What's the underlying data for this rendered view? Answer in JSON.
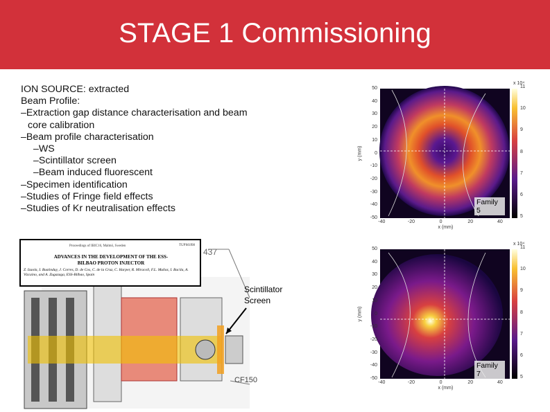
{
  "header": {
    "title": "STAGE 1 Commissioning"
  },
  "bullets": [
    "ION SOURCE: extracted",
    "Beam Profile:",
    "–Extraction gap distance characterisation  and beam",
    "core calibration",
    "–Beam profile characterisation",
    "–WS",
    "–Scintillator screen",
    "–Beam induced fluorescent",
    "–Specimen identification",
    "–Studies of Fringe field effects",
    "–Studies of Kr neutralisation effects"
  ],
  "plot_axes": {
    "y_label": "y (mm)",
    "x_label": "x (mm)",
    "y_ticks": [
      50,
      40,
      30,
      20,
      10,
      0,
      -10,
      -20,
      -30,
      -40,
      -50
    ],
    "x_ticks": [
      -40,
      -20,
      0,
      20,
      40
    ],
    "colorbar_ticks": [
      11,
      10,
      9,
      8,
      7,
      6,
      5
    ],
    "colorbar_scale": "x 10⁴"
  },
  "plots": [
    {
      "label": "Family 5"
    },
    {
      "label": "Family 7"
    }
  ],
  "annotation": "Scintillator Screen",
  "paper": {
    "header_left": "Proceedings of IBIC16, Malmö, Sweden",
    "header_right": "TUPM1f08",
    "title": "ADVANCES IN THE DEVELOPMENT OF THE ESS-BILBAO PROTON INJECTOR",
    "authors": "Z. Izaola, I. Bustinduy, J. Corres, D. de Cos, C. de la Cruz, C. Harper, R. Miracoli, F.L. Muñoz, I. Bacila, A. Vizcaino, and A. Zugazaga, ESS-Bilbao, Spain"
  },
  "diagram": {
    "dimension": "437",
    "flange": "CF150"
  }
}
